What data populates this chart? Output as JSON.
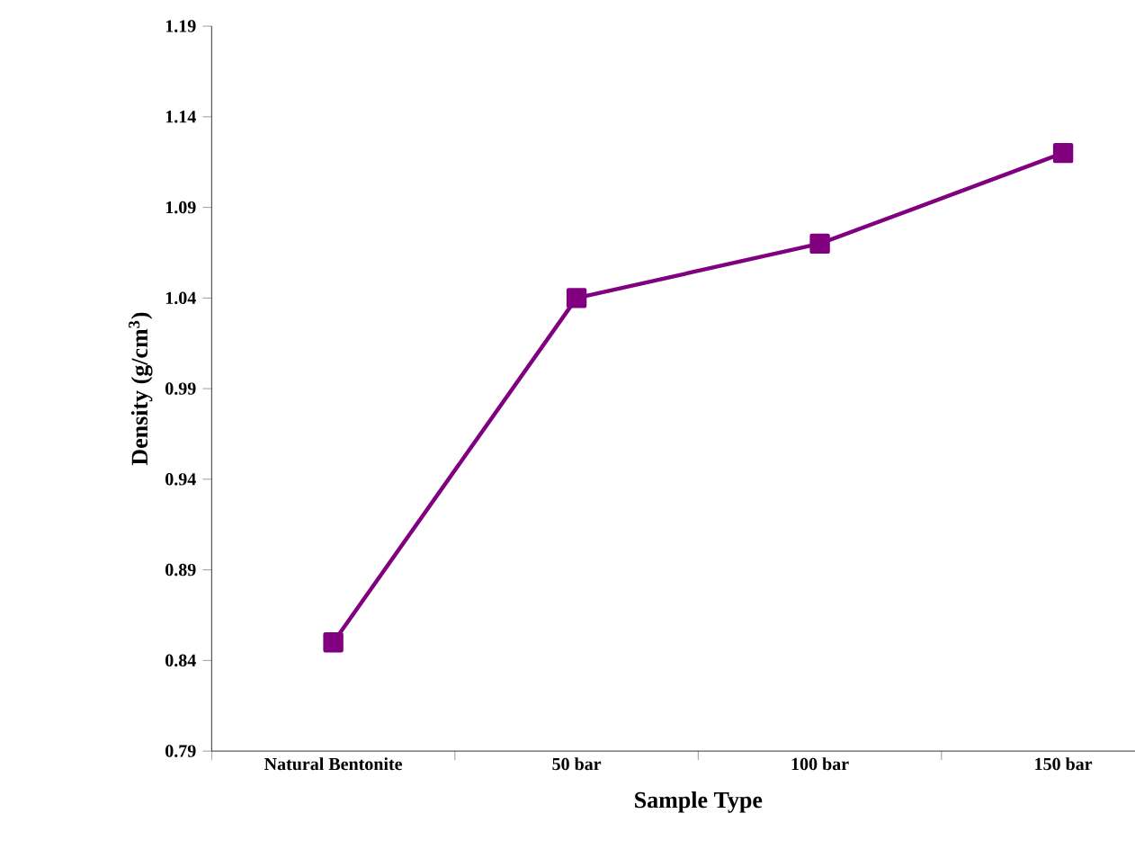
{
  "chart_data": {
    "type": "line",
    "xlabel": "Sample Type",
    "ylabel": "Density (g/cm$^{3}$)",
    "categories": [
      "Natural Bentonite",
      "50 bar",
      "100 bar",
      "150 bar"
    ],
    "series": [
      {
        "color": "#800080",
        "values": [
          0.85,
          1.04,
          1.07,
          1.12
        ]
      }
    ],
    "ylim": [
      0.79,
      1.19
    ],
    "yticks": [
      0.79,
      0.84,
      0.89,
      0.94,
      0.99,
      1.04,
      1.09,
      1.14,
      1.19
    ],
    "marker": "square",
    "line_style": "solid",
    "grid": false
  }
}
